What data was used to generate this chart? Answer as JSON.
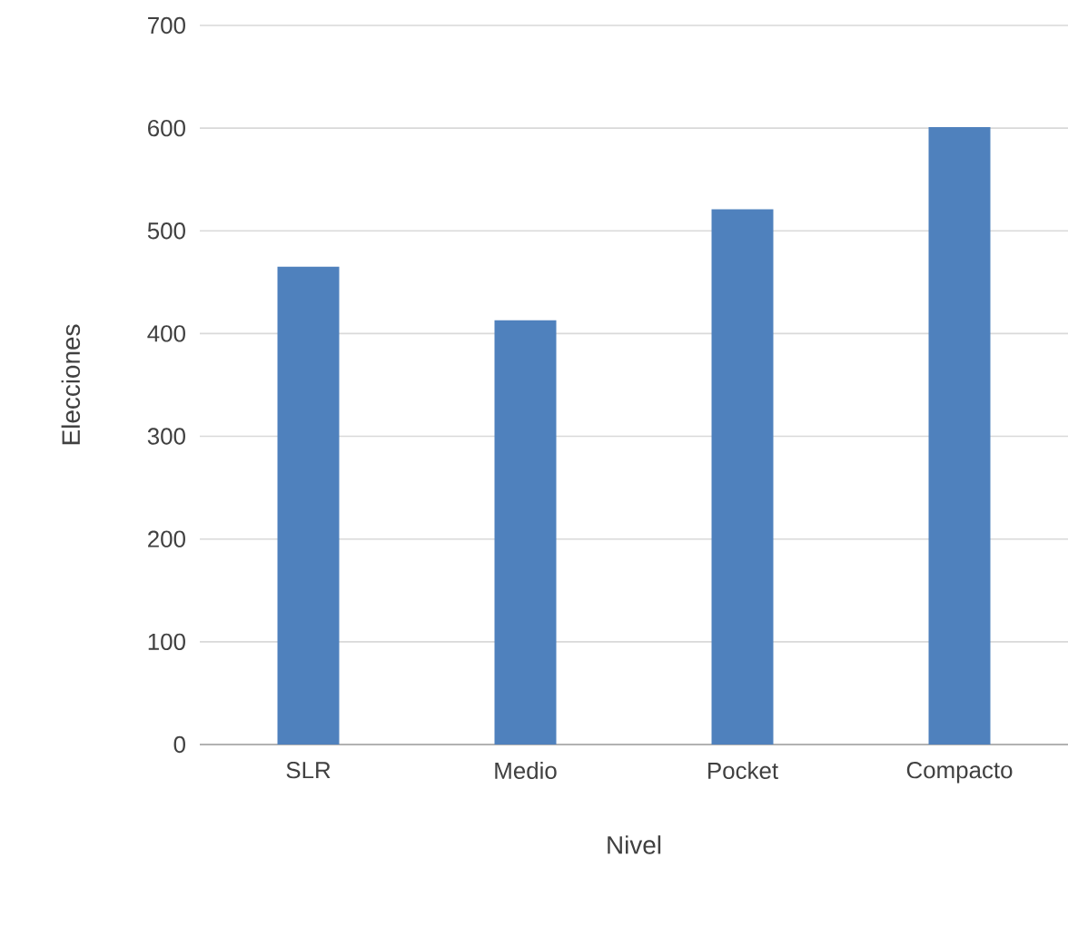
{
  "chart_data": {
    "type": "bar",
    "xlabel": "Nivel",
    "ylabel": "Elecciones",
    "categories": [
      "SLR",
      "Medio",
      "Pocket",
      "Compacto"
    ],
    "values": [
      465,
      413,
      521,
      601
    ],
    "color": "#4f81bd",
    "ylim": [
      0,
      700
    ],
    "yticks": [
      0,
      100,
      200,
      300,
      400,
      500,
      600,
      700
    ],
    "grid": "y"
  }
}
